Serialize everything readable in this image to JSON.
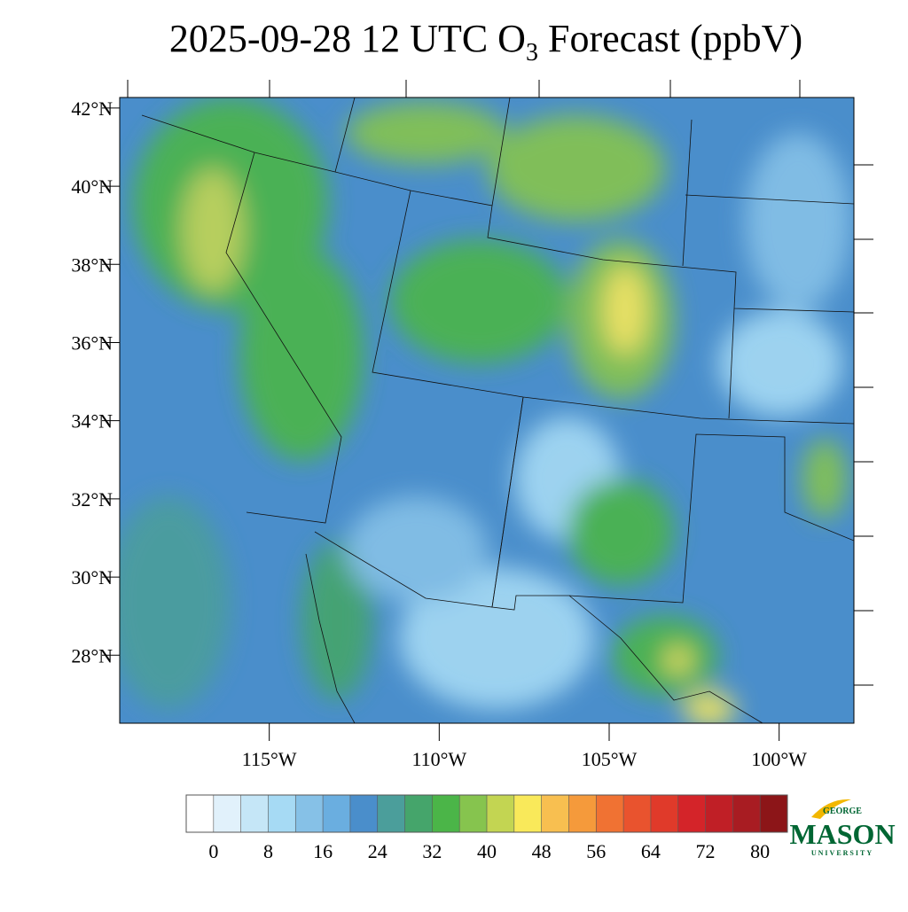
{
  "chart_data": {
    "type": "map",
    "title": {
      "text": "2025-09-28 12 UTC O",
      "subscript": "3",
      "text_after": " Forecast (ppbV)"
    },
    "xlim": [
      -119.4,
      -97.8
    ],
    "ylim": [
      26.26,
      42.27
    ],
    "xticks": [
      {
        "value": -115,
        "label": "115°W"
      },
      {
        "value": -110,
        "label": "110°W"
      },
      {
        "value": -105,
        "label": "105°W"
      },
      {
        "value": -100,
        "label": "100°W"
      }
    ],
    "yticks": [
      {
        "value": 42,
        "label": "42°N"
      },
      {
        "value": 40,
        "label": "40°N"
      },
      {
        "value": 38,
        "label": "38°N"
      },
      {
        "value": 36,
        "label": "36°N"
      },
      {
        "value": 34,
        "label": "34°N"
      },
      {
        "value": 32,
        "label": "32°N"
      },
      {
        "value": 30,
        "label": "30°N"
      },
      {
        "value": 28,
        "label": "28°N"
      }
    ],
    "colorbar": {
      "levels": [
        0,
        4,
        8,
        12,
        16,
        20,
        24,
        28,
        32,
        36,
        40,
        44,
        48,
        52,
        56,
        60,
        64,
        68,
        72,
        76,
        80
      ],
      "ticks": [
        0,
        8,
        16,
        24,
        32,
        40,
        48,
        56,
        64,
        72,
        80
      ],
      "colors": [
        "#ffffff",
        "#e1f1fb",
        "#c5e6f7",
        "#a6daf4",
        "#86c1e7",
        "#6aaee0",
        "#4a8ecb",
        "#4b9e9b",
        "#45a56b",
        "#4bb548",
        "#86c44e",
        "#c3d552",
        "#f9e95a",
        "#f8bf50",
        "#f59a3b",
        "#f07233",
        "#e9532e",
        "#e03a2a",
        "#d42429",
        "#c01f26",
        "#a81c22",
        "#8c1518"
      ]
    }
  },
  "logo": {
    "top": "GEORGE",
    "main": "MASON",
    "bottom": "UNIVERSITY"
  }
}
